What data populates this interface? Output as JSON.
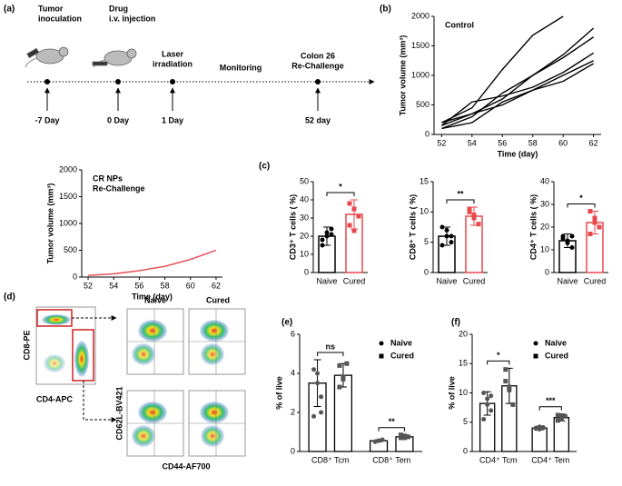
{
  "panel_labels": [
    "(a)",
    "(b)",
    "(c)",
    "(d)",
    "(e)",
    "(f)"
  ],
  "timeline": {
    "events": [
      {
        "label": [
          "Tumor",
          "inoculation"
        ],
        "day": "-7 Day"
      },
      {
        "label": [
          "Drug",
          "i.v. injection"
        ],
        "day": "0 Day"
      },
      {
        "label": [
          "Laser",
          "irradiation"
        ],
        "day": "1 Day"
      },
      {
        "label": [
          "Monitoring"
        ]
      },
      {
        "label": [
          "Colon 26",
          "Re-Challenge"
        ],
        "day": "52 day"
      }
    ]
  },
  "flow": {
    "y_gate_label": "CD8-PE",
    "x_gate_label": "CD4-APC",
    "columns": [
      "Naive",
      "Cured"
    ],
    "y_label": "CD62L-BV421",
    "x_label": "CD44-AF700"
  },
  "chart_data": [
    {
      "type": "line",
      "annotation": [
        "Control"
      ],
      "xlabel": "Time (day)",
      "ylabel": "Tumor volume (mm³)",
      "x": [
        52,
        54,
        56,
        58,
        60,
        62
      ],
      "xlim": [
        51.5,
        62.5
      ],
      "xticks": [
        52,
        54,
        56,
        58,
        60,
        62
      ],
      "ylim": [
        0,
        2000
      ],
      "yticks": [
        0,
        500,
        1000,
        1500,
        2000
      ],
      "series": [
        {
          "color": "#000000",
          "values": [
            200,
            450,
            1100,
            1680,
            2000,
            null
          ]
        },
        {
          "color": "#000000",
          "values": [
            150,
            350,
            600,
            1000,
            1350,
            1800
          ]
        },
        {
          "color": "#000000",
          "values": [
            100,
            300,
            700,
            1000,
            1300,
            1650
          ]
        },
        {
          "color": "#000000",
          "values": [
            150,
            550,
            650,
            800,
            1050,
            1380
          ]
        },
        {
          "color": "#000000",
          "values": [
            100,
            200,
            550,
            750,
            1000,
            1250
          ]
        },
        {
          "color": "#000000",
          "values": [
            200,
            350,
            500,
            750,
            900,
            1200
          ]
        }
      ]
    },
    {
      "type": "line",
      "annotation": [
        "CR NPs",
        "Re-Challenge"
      ],
      "xlabel": "Time (day)",
      "ylabel": "Tumor volume (mm³)",
      "x": [
        52,
        54,
        56,
        58,
        60,
        62
      ],
      "xlim": [
        51.5,
        62.5
      ],
      "xticks": [
        52,
        54,
        56,
        58,
        60,
        62
      ],
      "ylim": [
        0,
        2000
      ],
      "yticks": [
        0,
        500,
        1000,
        1500,
        2000
      ],
      "series": [
        {
          "color": "#e8474c",
          "values": [
            30,
            60,
            120,
            200,
            330,
            500
          ]
        }
      ]
    },
    {
      "type": "bar",
      "ylabel": "CD3⁺ T cells ( %)",
      "categories": [
        "Naive",
        "Cured"
      ],
      "colors": [
        "#000000",
        "#e8474c"
      ],
      "markers": [
        "circle",
        "square"
      ],
      "values": [
        20,
        32
      ],
      "errors": [
        5,
        8
      ],
      "points": [
        [
          18,
          22,
          24,
          15,
          20,
          21
        ],
        [
          38,
          35,
          31,
          26,
          23
        ]
      ],
      "ylim": [
        0,
        50
      ],
      "yticks": [
        0,
        10,
        20,
        30,
        40,
        50
      ],
      "significance": [
        "*"
      ]
    },
    {
      "type": "bar",
      "ylabel": "CD8⁺ T cells ( %)",
      "categories": [
        "Naive",
        "Cured"
      ],
      "colors": [
        "#000000",
        "#e8474c"
      ],
      "markers": [
        "circle",
        "square"
      ],
      "values": [
        6,
        9.3
      ],
      "errors": [
        1.5,
        1.5
      ],
      "points": [
        [
          7.5,
          6,
          5,
          4.5,
          7,
          6
        ],
        [
          10.5,
          9,
          8,
          10,
          9.5
        ]
      ],
      "ylim": [
        0,
        15
      ],
      "yticks": [
        0,
        5,
        10,
        15
      ],
      "significance": [
        "**"
      ]
    },
    {
      "type": "bar",
      "ylabel": "CD4⁺ T cells ( %)",
      "categories": [
        "Naive",
        "Cured"
      ],
      "colors": [
        "#000000",
        "#e8474c"
      ],
      "markers": [
        "circle",
        "square"
      ],
      "values": [
        14,
        22
      ],
      "errors": [
        3,
        5
      ],
      "points": [
        [
          16,
          13,
          11,
          15,
          14,
          16
        ],
        [
          27,
          24,
          20,
          17,
          22
        ]
      ],
      "ylim": [
        0,
        40
      ],
      "yticks": [
        0,
        10,
        20,
        30,
        40
      ],
      "significance": [
        "*"
      ]
    },
    {
      "type": "grouped",
      "ylabel": "% of live",
      "categories": [
        "CD8⁺ Tcm",
        "CD8⁺ Tem"
      ],
      "legend": "top-right",
      "ylim": [
        0,
        6
      ],
      "yticks": [
        0,
        2,
        4,
        6
      ],
      "significance": [
        "ns",
        "**"
      ],
      "series": [
        {
          "name": "Naive",
          "color": "#000000",
          "marker": "circle",
          "values": [
            3.5,
            0.55
          ],
          "errors": [
            1.2,
            0.05
          ],
          "points": [
            [
              4.2,
              3.5,
              2.8,
              1.8,
              4.0,
              2.0
            ],
            [
              0.5,
              0.55,
              0.6,
              0.5,
              0.55,
              0.6
            ]
          ]
        },
        {
          "name": "Cured",
          "color": "#000000",
          "marker": "square",
          "values": [
            3.9,
            0.75
          ],
          "errors": [
            0.6,
            0.1
          ],
          "points": [
            [
              4.4,
              3.8,
              4.5,
              3.3,
              3.7
            ],
            [
              0.7,
              0.8,
              0.75,
              0.85,
              0.7
            ]
          ]
        }
      ]
    },
    {
      "type": "grouped",
      "ylabel": "% of live",
      "categories": [
        "CD4⁺ Tcm",
        "CD4⁺ Tem"
      ],
      "legend": "top-right",
      "ylim": [
        0,
        20
      ],
      "yticks": [
        0,
        5,
        10,
        15,
        20
      ],
      "significance": [
        "*",
        "***"
      ],
      "series": [
        {
          "name": "Naive",
          "color": "#000000",
          "marker": "circle",
          "values": [
            8.2,
            4
          ],
          "errors": [
            2,
            0.3
          ],
          "points": [
            [
              10,
              9,
              7,
              5.5,
              8,
              9.5
            ],
            [
              4,
              3.8,
              4.1,
              3.9,
              4.2,
              4
            ]
          ]
        },
        {
          "name": "Cured",
          "color": "#000000",
          "marker": "square",
          "values": [
            11.2,
            5.8
          ],
          "errors": [
            3,
            0.6
          ],
          "points": [
            [
              14,
              11,
              8,
              12,
              10.5
            ],
            [
              6.2,
              5.5,
              6,
              5.3,
              6
            ]
          ]
        }
      ]
    }
  ]
}
